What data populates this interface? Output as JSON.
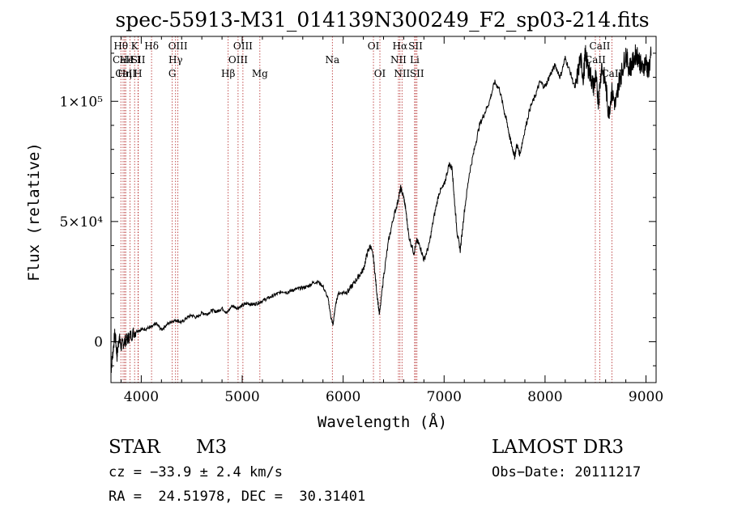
{
  "chart_data": {
    "type": "line",
    "title": "spec-55913-M31_014139N300249_F2_sp03-214.fits",
    "xlabel": "Wavelength (Å)",
    "ylabel": "Flux (relative)",
    "xlim": [
      3700,
      9100
    ],
    "ylim": [
      -17000,
      127000
    ],
    "grid": false,
    "x_ticks": [
      {
        "value": 4000,
        "label": "4000"
      },
      {
        "value": 5000,
        "label": "5000"
      },
      {
        "value": 6000,
        "label": "6000"
      },
      {
        "value": 7000,
        "label": "7000"
      },
      {
        "value": 8000,
        "label": "8000"
      },
      {
        "value": 9000,
        "label": "9000"
      }
    ],
    "y_ticks": [
      {
        "value": 0,
        "label": "0"
      },
      {
        "value": 50000,
        "label": "5×10⁴"
      },
      {
        "value": 100000,
        "label": "1×10⁵"
      }
    ],
    "series": [
      {
        "name": "spectrum",
        "color": "#000000",
        "x": [
          3700,
          3720,
          3740,
          3760,
          3780,
          3800,
          3830,
          3860,
          3900,
          3950,
          4000,
          4050,
          4100,
          4150,
          4200,
          4250,
          4300,
          4350,
          4400,
          4450,
          4500,
          4550,
          4600,
          4650,
          4700,
          4750,
          4800,
          4850,
          4900,
          4950,
          5000,
          5050,
          5100,
          5150,
          5200,
          5250,
          5300,
          5350,
          5400,
          5450,
          5500,
          5550,
          5600,
          5650,
          5700,
          5750,
          5800,
          5850,
          5880,
          5900,
          5920,
          5950,
          6000,
          6050,
          6100,
          6150,
          6200,
          6240,
          6270,
          6300,
          6330,
          6360,
          6400,
          6450,
          6500,
          6540,
          6570,
          6600,
          6620,
          6650,
          6700,
          6730,
          6760,
          6800,
          6850,
          6900,
          6950,
          7000,
          7050,
          7080,
          7100,
          7130,
          7160,
          7200,
          7250,
          7300,
          7350,
          7400,
          7450,
          7500,
          7550,
          7600,
          7620,
          7650,
          7680,
          7700,
          7720,
          7750,
          7800,
          7850,
          7900,
          7950,
          8000,
          8050,
          8100,
          8150,
          8200,
          8250,
          8300,
          8350,
          8380,
          8400,
          8420,
          8450,
          8480,
          8500,
          8530,
          8560,
          8600,
          8630,
          8660,
          8700,
          8730,
          8760,
          8800,
          8830,
          8860,
          8900,
          8930,
          8960,
          9000,
          9020,
          9050
        ],
        "y": [
          -12000,
          -4000,
          4000,
          -6000,
          2000,
          -2000,
          0,
          1000,
          3000,
          4500,
          5000,
          5500,
          6000,
          7500,
          5000,
          7000,
          8500,
          9000,
          8000,
          10000,
          11000,
          10000,
          12000,
          11500,
          13000,
          12500,
          14000,
          12000,
          15000,
          14000,
          15000,
          16000,
          15500,
          16000,
          17000,
          18000,
          19000,
          20000,
          21000,
          20500,
          21500,
          22000,
          22500,
          23000,
          24500,
          25000,
          23000,
          18000,
          10000,
          7000,
          14000,
          20000,
          20500,
          21000,
          24000,
          27000,
          30000,
          37000,
          40000,
          35000,
          22000,
          11000,
          27000,
          42000,
          52000,
          58000,
          64000,
          60000,
          55000,
          44000,
          37000,
          42000,
          40000,
          34000,
          40000,
          52000,
          62000,
          65000,
          74000,
          72000,
          60000,
          45000,
          38000,
          54000,
          70000,
          80000,
          90000,
          95000,
          100000,
          108000,
          105000,
          95000,
          92000,
          85000,
          80000,
          77000,
          82000,
          78000,
          88000,
          97000,
          102000,
          108000,
          106000,
          111000,
          115000,
          110000,
          118000,
          112000,
          105000,
          118000,
          110000,
          120000,
          115000,
          111000,
          106000,
          110000,
          100000,
          115000,
          107000,
          95000,
          104000,
          98000,
          108000,
          112000,
          120000,
          114000,
          115000,
          120000,
          118000,
          113000,
          117000,
          112000,
          119000
        ]
      }
    ],
    "lines": [
      {
        "name": "Hθ",
        "x": 3798,
        "row": 1
      },
      {
        "name": "CaII",
        "x": 3820,
        "row": 2
      },
      {
        "name": "CaII",
        "x": 3846,
        "row": 3
      },
      {
        "name": "K",
        "x": 3934,
        "row": 1
      },
      {
        "name": "He I",
        "x": 3889,
        "row": 2
      },
      {
        "name": "Hη",
        "x": 3835,
        "row": 3
      },
      {
        "name": "SII",
        "x": 3970,
        "row": 2
      },
      {
        "name": "H",
        "x": 3968,
        "row": 3
      },
      {
        "name": "Hδ",
        "x": 4102,
        "row": 1
      },
      {
        "name": "OIII",
        "x": 4363,
        "row": 1
      },
      {
        "name": "Hγ",
        "x": 4340,
        "row": 2
      },
      {
        "name": "G",
        "x": 4307,
        "row": 3
      },
      {
        "name": "OIII",
        "x": 5007,
        "row": 1
      },
      {
        "name": "OIII",
        "x": 4959,
        "row": 2
      },
      {
        "name": "Hβ",
        "x": 4861,
        "row": 3
      },
      {
        "name": "Mg",
        "x": 5175,
        "row": 3
      },
      {
        "name": "Na",
        "x": 5893,
        "row": 2
      },
      {
        "name": "OI",
        "x": 6300,
        "row": 1
      },
      {
        "name": "OI",
        "x": 6364,
        "row": 3
      },
      {
        "name": "Hα",
        "x": 6563,
        "row": 1
      },
      {
        "name": "SII",
        "x": 6717,
        "row": 1
      },
      {
        "name": "NII",
        "x": 6548,
        "row": 2
      },
      {
        "name": "Li",
        "x": 6708,
        "row": 2
      },
      {
        "name": "NII",
        "x": 6583,
        "row": 3
      },
      {
        "name": "SII",
        "x": 6731,
        "row": 3
      },
      {
        "name": "CaII",
        "x": 8542,
        "row": 1
      },
      {
        "name": "CaII",
        "x": 8498,
        "row": 2
      },
      {
        "name": "CaII",
        "x": 8662,
        "row": 3
      }
    ]
  },
  "info": {
    "class": "STAR",
    "subclass": "M3",
    "survey": "LAMOST DR3",
    "cz": "cz = −33.9 ± 2.4 km/s",
    "obs_date": "Obs−Date: 20111217",
    "radec": "RA =  24.51978, DEC =  30.31401"
  },
  "colors": {
    "line_marker": "#b22222",
    "spectrum": "#000000",
    "axis": "#000000"
  }
}
